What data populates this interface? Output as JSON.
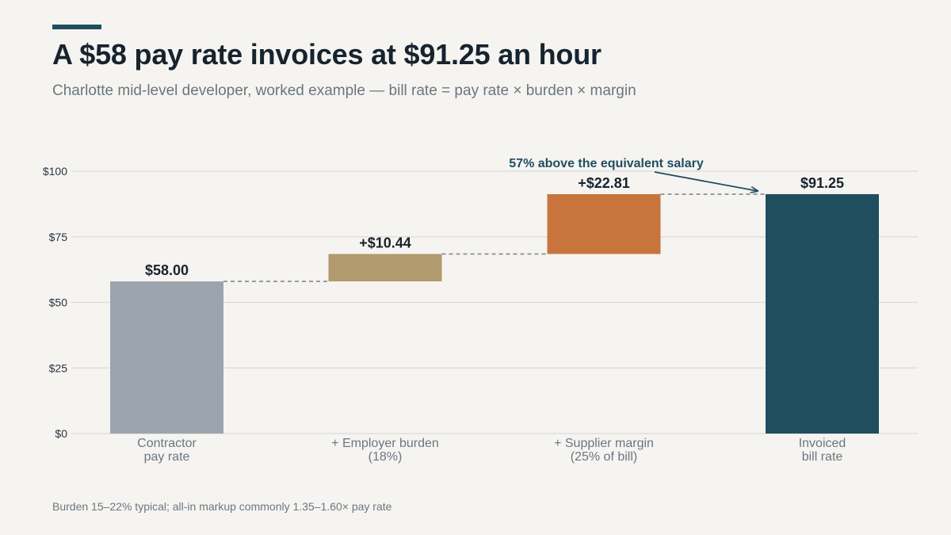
{
  "header": {
    "title": "A $58 pay rate invoices at $91.25 an hour",
    "subtitle": "Charlotte mid-level developer, worked example — bill rate = pay rate × burden × margin"
  },
  "footnote": "Burden 15–22% typical; all-in markup commonly 1.35–1.60× pay rate",
  "chart_data": {
    "type": "bar",
    "subtype": "waterfall",
    "categories": [
      [
        "Contractor",
        "pay rate"
      ],
      [
        "+ Employer burden",
        "(18%)"
      ],
      [
        "+ Supplier margin",
        "(25% of bill)"
      ],
      [
        "Invoiced",
        "bill rate"
      ]
    ],
    "steps": [
      {
        "kind": "total",
        "start": 0,
        "end": 58.0,
        "label": "$58.00",
        "color": "#9ca5ae"
      },
      {
        "kind": "delta",
        "start": 58.0,
        "end": 68.44,
        "label": "+$10.44",
        "color": "#b09a6e"
      },
      {
        "kind": "delta",
        "start": 68.44,
        "end": 91.25,
        "label": "+$22.81",
        "color": "#c8753d"
      },
      {
        "kind": "total",
        "start": 0,
        "end": 91.25,
        "label": "$91.25",
        "color": "#1f4e5f"
      }
    ],
    "ylim": [
      0,
      100
    ],
    "yticks": [
      0,
      25,
      50,
      75,
      100
    ],
    "ytick_labels": [
      "$0",
      "$25",
      "$50",
      "$75",
      "$100"
    ],
    "grid": true,
    "connectors": "dashed",
    "annotation": {
      "text": "57% above the equivalent salary",
      "points_to_category": 3
    },
    "colors": {
      "grid": "#dcdad6",
      "connector": "#8a8f94",
      "annotation": "#1f4e5f"
    }
  }
}
